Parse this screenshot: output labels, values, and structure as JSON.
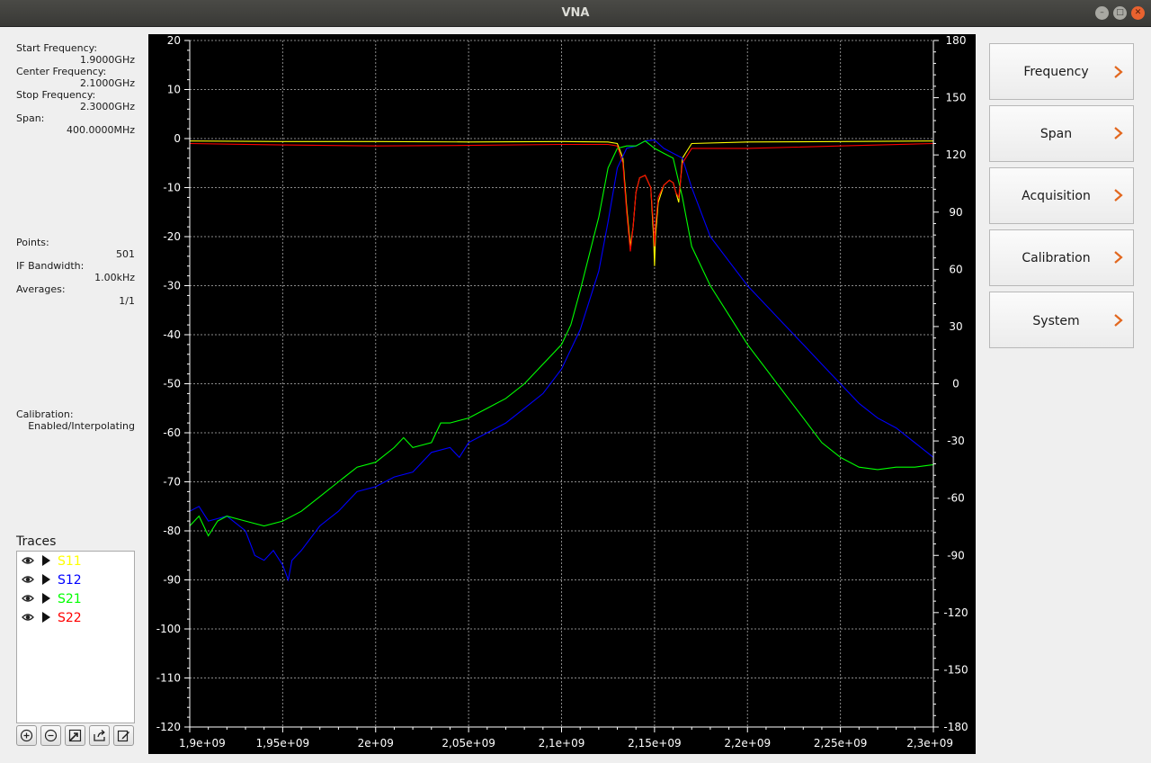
{
  "window": {
    "title": "VNA"
  },
  "sweep": {
    "start_label": "Start Frequency:",
    "start_value": "1.9000GHz",
    "center_label": "Center Frequency:",
    "center_value": "2.1000GHz",
    "stop_label": "Stop Frequency:",
    "stop_value": "2.3000GHz",
    "span_label": "Span:",
    "span_value": "400.0000MHz"
  },
  "acquisition": {
    "points_label": "Points:",
    "points_value": "501",
    "ifbw_label": "IF Bandwidth:",
    "ifbw_value": "1.00kHz",
    "averages_label": "Averages:",
    "averages_value": "1/1"
  },
  "calibration": {
    "label": "Calibration:",
    "value": "Enabled/Interpolating"
  },
  "traces": {
    "title": "Traces",
    "items": [
      {
        "name": "S11",
        "color": "#ffff00",
        "visible": true
      },
      {
        "name": "S12",
        "color": "#0000ff",
        "visible": true
      },
      {
        "name": "S21",
        "color": "#00ff00",
        "visible": true
      },
      {
        "name": "S22",
        "color": "#ff0000",
        "visible": true
      }
    ],
    "toolbar": [
      "add-icon",
      "remove-icon",
      "edit-markers-icon",
      "export-icon",
      "edit-icon"
    ]
  },
  "side_menu": {
    "items": [
      {
        "label": "Frequency"
      },
      {
        "label": "Span"
      },
      {
        "label": "Acquisition"
      },
      {
        "label": "Calibration"
      },
      {
        "label": "System"
      }
    ],
    "chevron_color": "#e2671e"
  },
  "chart_data": {
    "type": "line",
    "x_unit": "Hz",
    "xlim": [
      1900000000,
      2300000000
    ],
    "x_ticks": [
      "1,9e+09",
      "1,95e+09",
      "2e+09",
      "2,05e+09",
      "2,1e+09",
      "2,15e+09",
      "2,2e+09",
      "2,25e+09",
      "2,3e+09"
    ],
    "ylim_left": [
      -120,
      20
    ],
    "y_ticks_left": [
      "20",
      "10",
      "0",
      "-10",
      "-20",
      "-30",
      "-40",
      "-50",
      "-60",
      "-70",
      "-80",
      "-90",
      "-100",
      "-110",
      "-120"
    ],
    "ylim_right": [
      -180,
      180
    ],
    "y_ticks_right": [
      "180",
      "150",
      "120",
      "90",
      "60",
      "30",
      "0",
      "-30",
      "-60",
      "-90",
      "-120",
      "-150",
      "-180"
    ],
    "grid": true,
    "background": "#000000",
    "series": [
      {
        "name": "S11",
        "color": "#ffff00",
        "x": [
          1900000000.0,
          1950000000.0,
          2000000000.0,
          2050000000.0,
          2100000000.0,
          2125000000.0,
          2130000000.0,
          2133000000.0,
          2135000000.0,
          2137000000.0,
          2138500000.0,
          2140000000.0,
          2142000000.0,
          2145000000.0,
          2148000000.0,
          2149500000.0,
          2150000000.0,
          2150500000.0,
          2152000000.0,
          2155000000.0,
          2158000000.0,
          2160000000.0,
          2161500000.0,
          2163000000.0,
          2165000000.0,
          2170000000.0,
          2200000000.0,
          2250000000.0,
          2300000000.0
        ],
        "y": [
          -0.5,
          -0.6,
          -0.6,
          -0.7,
          -0.6,
          -0.7,
          -1,
          -4,
          -14,
          -22,
          -18,
          -11,
          -8,
          -7.5,
          -10,
          -20,
          -26,
          -20,
          -13,
          -9.5,
          -8.5,
          -9,
          -11,
          -13,
          -4,
          -1,
          -0.7,
          -0.6,
          -0.5
        ]
      },
      {
        "name": "S12",
        "color": "#0000ff",
        "x": [
          1900000000.0,
          1905000000.0,
          1910000000.0,
          1920000000.0,
          1930000000.0,
          1935000000.0,
          1940000000.0,
          1945000000.0,
          1950000000.0,
          1953000000.0,
          1955000000.0,
          1960000000.0,
          1970000000.0,
          1980000000.0,
          1990000000.0,
          2000000000.0,
          2010000000.0,
          2020000000.0,
          2030000000.0,
          2040000000.0,
          2045000000.0,
          2050000000.0,
          2060000000.0,
          2070000000.0,
          2080000000.0,
          2090000000.0,
          2100000000.0,
          2110000000.0,
          2120000000.0,
          2125000000.0,
          2130000000.0,
          2135000000.0,
          2140000000.0,
          2145000000.0,
          2150000000.0,
          2155000000.0,
          2160000000.0,
          2165000000.0,
          2170000000.0,
          2180000000.0,
          2190000000.0,
          2200000000.0,
          2210000000.0,
          2220000000.0,
          2230000000.0,
          2240000000.0,
          2250000000.0,
          2260000000.0,
          2270000000.0,
          2280000000.0,
          2290000000.0,
          2300000000.0
        ],
        "y": [
          -76,
          -75,
          -78,
          -77,
          -80,
          -85,
          -86,
          -84,
          -87,
          -90,
          -86,
          -84,
          -79,
          -76,
          -72,
          -71,
          -69,
          -68,
          -64,
          -63,
          -65,
          -62,
          -60,
          -58,
          -55,
          -52,
          -47,
          -39,
          -27,
          -17,
          -6,
          -2,
          -1.5,
          -0.5,
          -0.3,
          -2,
          -3,
          -4,
          -10,
          -20,
          -25,
          -30,
          -34,
          -38,
          -42,
          -46,
          -50,
          -54,
          -57,
          -59,
          -62,
          -65
        ]
      },
      {
        "name": "S21",
        "color": "#00ff00",
        "x": [
          1900000000.0,
          1905000000.0,
          1910000000.0,
          1915000000.0,
          1920000000.0,
          1930000000.0,
          1940000000.0,
          1950000000.0,
          1960000000.0,
          1970000000.0,
          1980000000.0,
          1990000000.0,
          2000000000.0,
          2010000000.0,
          2015000000.0,
          2020000000.0,
          2030000000.0,
          2035000000.0,
          2040000000.0,
          2050000000.0,
          2060000000.0,
          2070000000.0,
          2080000000.0,
          2090000000.0,
          2100000000.0,
          2105000000.0,
          2110000000.0,
          2120000000.0,
          2125000000.0,
          2130000000.0,
          2135000000.0,
          2140000000.0,
          2145000000.0,
          2150000000.0,
          2155000000.0,
          2160000000.0,
          2165000000.0,
          2170000000.0,
          2180000000.0,
          2190000000.0,
          2200000000.0,
          2210000000.0,
          2220000000.0,
          2230000000.0,
          2240000000.0,
          2250000000.0,
          2260000000.0,
          2270000000.0,
          2280000000.0,
          2290000000.0,
          2300000000.0
        ],
        "y": [
          -79,
          -77,
          -81,
          -78,
          -77,
          -78,
          -79,
          -78,
          -76,
          -73,
          -70,
          -67,
          -66,
          -63,
          -61,
          -63,
          -62,
          -58,
          -58,
          -57,
          -55,
          -53,
          -50,
          -46,
          -42,
          -38,
          -31,
          -16,
          -6,
          -2,
          -1.5,
          -1.5,
          -0.5,
          -2,
          -3,
          -4,
          -12,
          -22,
          -30,
          -36,
          -42,
          -47,
          -52,
          -57,
          -62,
          -65,
          -67,
          -67.5,
          -67,
          -67,
          -66.5
        ]
      },
      {
        "name": "S22",
        "color": "#ff0000",
        "x": [
          1900000000.0,
          1950000000.0,
          2000000000.0,
          2050000000.0,
          2100000000.0,
          2125000000.0,
          2130000000.0,
          2133000000.0,
          2135000000.0,
          2137000000.0,
          2138500000.0,
          2140000000.0,
          2142000000.0,
          2145000000.0,
          2148000000.0,
          2149500000.0,
          2150000000.0,
          2150500000.0,
          2152000000.0,
          2155000000.0,
          2158000000.0,
          2160000000.0,
          2161500000.0,
          2163000000.0,
          2165000000.0,
          2170000000.0,
          2200000000.0,
          2250000000.0,
          2300000000.0
        ],
        "y": [
          -1,
          -1.3,
          -1.5,
          -1.4,
          -1.2,
          -1.2,
          -1.5,
          -5,
          -15,
          -23,
          -18,
          -11,
          -8,
          -7.5,
          -10,
          -18,
          -22,
          -18,
          -12,
          -9.5,
          -8.5,
          -9,
          -11,
          -12,
          -5,
          -2,
          -2,
          -1.5,
          -1
        ]
      }
    ]
  }
}
